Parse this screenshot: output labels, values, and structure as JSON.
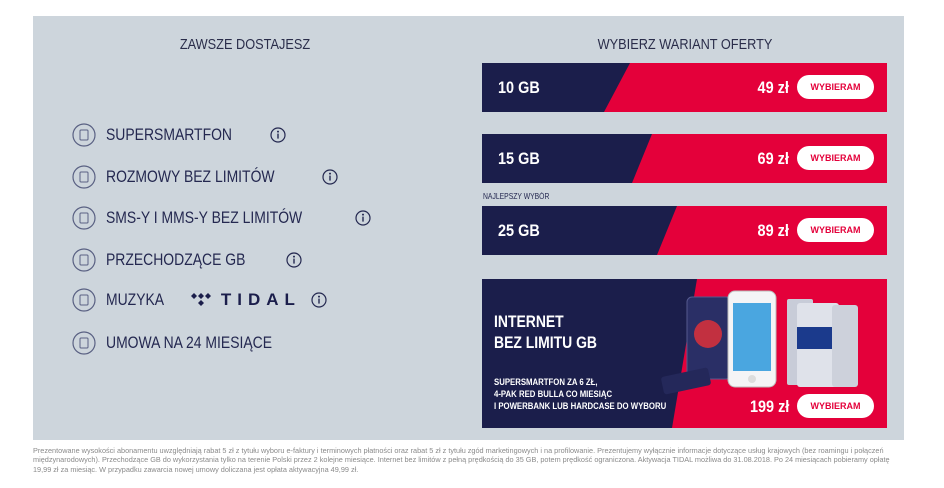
{
  "left": {
    "title": "ZAWSZE DOSTAJESZ",
    "features": [
      {
        "label": "SUPERSMARTFON"
      },
      {
        "label": "ROZMOWY BEZ LIMITÓW"
      },
      {
        "label": "SMS-Y I MMS-Y BEZ LIMITÓW"
      },
      {
        "label": "PRZECHODZĄCE GB"
      },
      {
        "label": "MUZYKA",
        "brand": "TIDAL"
      },
      {
        "label": "UMOWA NA 24 MIESIĄCE"
      }
    ]
  },
  "right": {
    "title": "WYBIERZ WARIANT OFERTY",
    "offers": [
      {
        "data": "10 GB",
        "price": "49 zł",
        "button": "WYBIERAM"
      },
      {
        "data": "15 GB",
        "price": "69 zł",
        "button": "WYBIERAM"
      },
      {
        "badge": "NAJLEPSZY WYBÓR",
        "data": "25 GB",
        "price": "89 zł",
        "button": "WYBIERAM"
      }
    ],
    "special": {
      "title": [
        "INTERNET",
        "BEZ LIMITU GB"
      ],
      "description": [
        "SUPERSMARTFON ZA 6 ZŁ,",
        "4-PAK RED BULLA CO MIESIĄC",
        "I POWERBANK LUB HARDCASE DO WYBORU"
      ],
      "price": "199 zł",
      "button": "WYBIERAM"
    }
  },
  "footer": "Prezentowane wysokości abonamentu uwzględniają rabat 5 zł z tytułu wyboru e-faktury i terminowych płatności oraz rabat 5 zł z tytułu zgód marketingowych i na profilowanie. Prezentujemy wyłącznie informacje dotyczące usług krajowych (bez roamingu i połączeń międzynarodowych). Przechodzące GB do wykorzystania tylko na terenie Polski przez 2 kolejne miesiące. Internet bez limitów z pełną prędkością do 35 GB, potem prędkość ograniczona. Aktywacja TIDAL możliwa do 31.08.2018. Po 24 miesiącach pobieramy opłatę 19,99 zł za miesiąc. W przypadku zawarcia nowej umowy doliczana jest opłata aktywacyjna 49,99 zł."
}
